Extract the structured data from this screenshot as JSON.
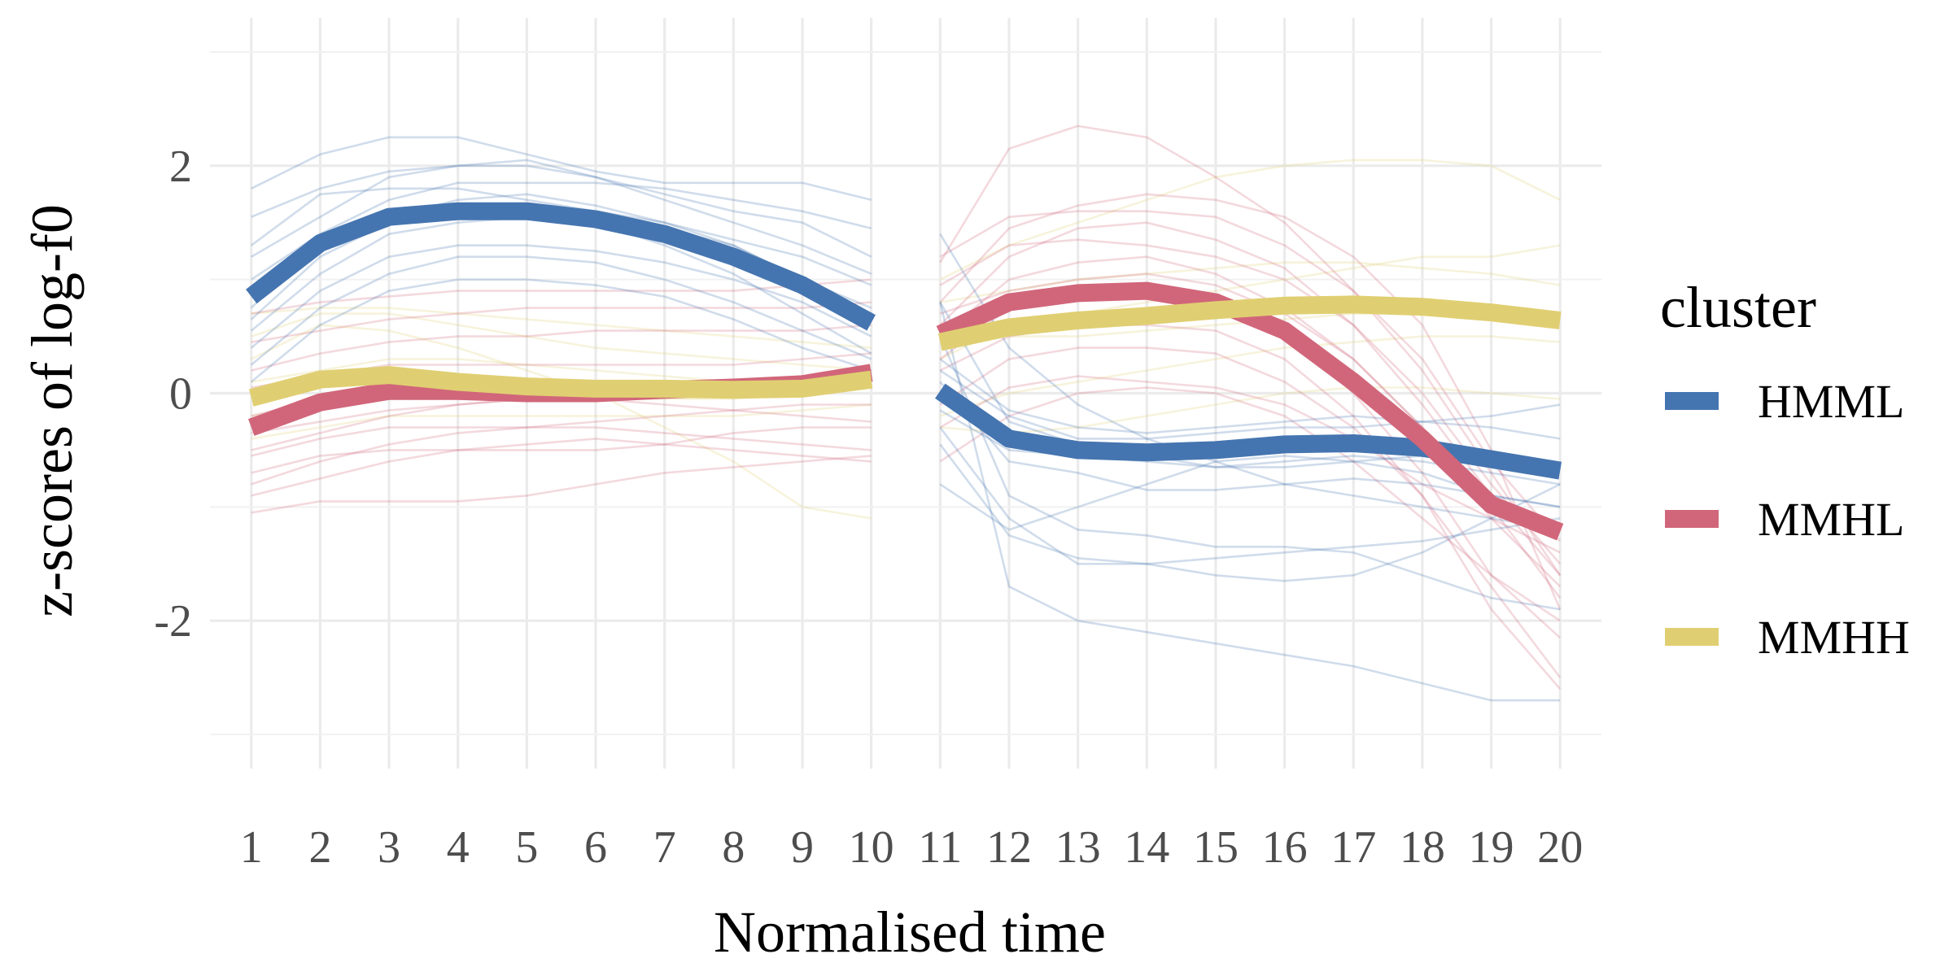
{
  "chart_data": {
    "type": "line",
    "title": "",
    "xlabel": "Normalised time",
    "ylabel": "z-scores of log-f0",
    "x": [
      1,
      2,
      3,
      4,
      5,
      6,
      7,
      8,
      9,
      10,
      11,
      12,
      13,
      14,
      15,
      16,
      17,
      18,
      19,
      20
    ],
    "xlim": [
      0.4,
      20.6
    ],
    "ylim": [
      -3.3,
      3.3
    ],
    "yticks": [
      -2,
      0,
      2
    ],
    "ytick_labels": [
      "-2",
      "0",
      "2"
    ],
    "grid": true,
    "legend": {
      "title": "cluster",
      "position": "right"
    },
    "series": [
      {
        "name": "HMML",
        "color": "#4575b0",
        "values": [
          0.85,
          1.32,
          1.55,
          1.6,
          1.6,
          1.53,
          1.4,
          1.2,
          0.95,
          0.62,
          0.02,
          -0.4,
          -0.5,
          -0.52,
          -0.5,
          -0.45,
          -0.44,
          -0.48,
          -0.58,
          -0.68
        ]
      },
      {
        "name": "MMHL",
        "color": "#d1667a",
        "values": [
          -0.3,
          -0.08,
          0.02,
          0.02,
          0.0,
          0.0,
          0.03,
          0.05,
          0.08,
          0.18,
          0.52,
          0.8,
          0.88,
          0.9,
          0.8,
          0.55,
          0.1,
          -0.4,
          -0.98,
          -1.22
        ]
      },
      {
        "name": "MMHH",
        "color": "#e0cf72",
        "values": [
          -0.04,
          0.12,
          0.16,
          0.1,
          0.06,
          0.04,
          0.04,
          0.03,
          0.04,
          0.12,
          0.45,
          0.58,
          0.64,
          0.68,
          0.73,
          0.77,
          0.78,
          0.76,
          0.71,
          0.64
        ]
      }
    ],
    "individual_contours": {
      "HMML": [
        [
          1.8,
          2.1,
          2.25,
          2.25,
          2.1,
          1.95,
          1.85,
          1.85,
          1.85,
          1.7,
          1.4,
          0.4,
          -0.1,
          -0.4,
          -0.6,
          -0.8,
          -0.9,
          -1.0,
          -1.1,
          -1.2
        ],
        [
          1.55,
          1.8,
          1.95,
          2.0,
          2.0,
          1.9,
          1.75,
          1.6,
          1.5,
          1.2,
          0.8,
          -1.7,
          -2.0,
          -2.1,
          -2.2,
          -2.3,
          -2.4,
          -2.55,
          -2.7,
          -2.7
        ],
        [
          1.2,
          1.55,
          1.9,
          2.0,
          2.05,
          1.9,
          1.7,
          1.5,
          1.3,
          1.05,
          0.5,
          -0.9,
          -1.2,
          -1.25,
          -1.35,
          -1.35,
          -1.4,
          -1.6,
          -1.8,
          -1.9
        ],
        [
          1.0,
          1.4,
          1.7,
          1.85,
          1.85,
          1.85,
          1.8,
          1.7,
          1.6,
          1.45,
          0.1,
          -0.6,
          -0.7,
          -0.85,
          -0.85,
          -0.8,
          -0.75,
          -0.8,
          -0.9,
          -1.0
        ],
        [
          0.75,
          1.35,
          1.55,
          1.7,
          1.75,
          1.65,
          1.5,
          1.35,
          1.2,
          0.95,
          -0.15,
          -0.5,
          -0.55,
          -0.6,
          -0.65,
          -0.6,
          -0.55,
          -0.6,
          -0.7,
          -0.8
        ],
        [
          0.55,
          1.05,
          1.4,
          1.5,
          1.55,
          1.55,
          1.45,
          1.3,
          1.0,
          0.75,
          0.3,
          -0.15,
          -0.3,
          -0.35,
          -0.3,
          -0.25,
          -0.2,
          -0.25,
          -0.3,
          -0.4
        ],
        [
          0.4,
          0.9,
          1.2,
          1.3,
          1.3,
          1.25,
          1.15,
          1.0,
          0.8,
          0.5,
          -0.3,
          -1.1,
          -1.5,
          -1.5,
          -1.45,
          -1.4,
          -1.35,
          -1.3,
          -1.2,
          -1.1
        ],
        [
          0.25,
          0.75,
          1.05,
          1.2,
          1.2,
          1.15,
          1.0,
          0.8,
          0.55,
          0.3,
          -0.45,
          -1.25,
          -1.45,
          -1.5,
          -1.6,
          -1.65,
          -1.6,
          -1.4,
          -1.1,
          -0.8
        ],
        [
          0.1,
          0.6,
          0.9,
          1.0,
          1.0,
          0.95,
          0.85,
          0.65,
          0.4,
          0.2,
          0.2,
          -0.2,
          -0.4,
          -0.4,
          -0.35,
          -0.3,
          -0.3,
          -0.25,
          -0.2,
          -0.1
        ],
        [
          1.3,
          1.75,
          1.8,
          1.8,
          1.7,
          1.6,
          1.5,
          1.3,
          1.0,
          0.7,
          -0.8,
          -1.2,
          -1.0,
          -0.8,
          -0.6,
          -0.55,
          -0.6,
          -0.7,
          -0.9,
          -1.0
        ],
        [
          0.65,
          1.2,
          1.5,
          1.6,
          1.6,
          1.5,
          1.3,
          1.05,
          0.7,
          0.35,
          0.8,
          -0.25,
          -0.45,
          -0.55,
          -0.65,
          -0.65,
          -0.6,
          -0.55,
          -0.6,
          -0.65
        ]
      ],
      "MMHL": [
        [
          -1.05,
          -0.95,
          -0.95,
          -0.95,
          -0.9,
          -0.8,
          -0.7,
          -0.65,
          -0.6,
          -0.55,
          1.15,
          2.15,
          2.35,
          2.25,
          1.9,
          1.5,
          0.9,
          0.2,
          -0.7,
          -1.6
        ],
        [
          -0.9,
          -0.75,
          -0.6,
          -0.5,
          -0.45,
          -0.4,
          -0.45,
          -0.5,
          -0.55,
          -0.6,
          0.8,
          1.45,
          1.65,
          1.75,
          1.7,
          1.55,
          1.2,
          0.6,
          -0.5,
          -1.9
        ],
        [
          -0.7,
          -0.55,
          -0.5,
          -0.5,
          -0.5,
          -0.5,
          -0.45,
          -0.35,
          -0.3,
          -0.3,
          0.6,
          1.2,
          1.45,
          1.5,
          1.35,
          1.1,
          0.6,
          -0.1,
          -0.9,
          -1.6
        ],
        [
          -0.55,
          -0.4,
          -0.3,
          -0.3,
          -0.3,
          -0.25,
          -0.2,
          -0.15,
          -0.1,
          -0.1,
          1.2,
          1.55,
          1.6,
          1.6,
          1.55,
          1.3,
          0.9,
          0.3,
          -0.6,
          -1.3
        ],
        [
          -0.35,
          -0.25,
          -0.15,
          -0.1,
          -0.05,
          0.0,
          0.05,
          0.05,
          0.05,
          0.1,
          0.5,
          1.0,
          1.15,
          1.2,
          1.05,
          0.75,
          0.3,
          -0.3,
          -1.1,
          -1.7
        ],
        [
          -0.2,
          -0.05,
          0.05,
          0.1,
          0.1,
          0.1,
          0.1,
          0.1,
          0.15,
          0.2,
          0.3,
          0.75,
          0.95,
          0.95,
          0.8,
          0.55,
          0.0,
          -0.7,
          -1.6,
          -2.15
        ],
        [
          0.05,
          0.15,
          0.25,
          0.25,
          0.25,
          0.25,
          0.25,
          0.25,
          0.3,
          0.35,
          0.2,
          0.5,
          0.6,
          0.6,
          0.55,
          0.3,
          -0.2,
          -0.9,
          -1.7,
          -2.5
        ],
        [
          0.2,
          0.35,
          0.45,
          0.5,
          0.5,
          0.55,
          0.55,
          0.55,
          0.55,
          0.6,
          -0.1,
          0.3,
          0.4,
          0.4,
          0.35,
          0.1,
          -0.3,
          -0.9,
          -1.9,
          -2.6
        ],
        [
          0.45,
          0.55,
          0.65,
          0.7,
          0.75,
          0.75,
          0.75,
          0.75,
          0.75,
          0.8,
          -0.3,
          0.05,
          0.15,
          0.1,
          0.05,
          -0.1,
          -0.4,
          -0.8,
          -1.1,
          -1.4
        ],
        [
          0.7,
          0.8,
          0.85,
          0.9,
          0.9,
          0.9,
          0.9,
          0.9,
          0.95,
          1.0,
          0.95,
          1.3,
          1.35,
          1.3,
          1.2,
          1.0,
          0.6,
          0.0,
          -0.8,
          -1.5
        ],
        [
          -0.8,
          -0.6,
          -0.45,
          -0.35,
          -0.3,
          -0.3,
          -0.35,
          -0.4,
          -0.45,
          -0.5,
          0.7,
          0.9,
          1.0,
          1.05,
          0.95,
          0.7,
          0.3,
          -0.3,
          -1.0,
          -1.8
        ],
        [
          -0.5,
          -0.35,
          -0.2,
          -0.1,
          -0.05,
          -0.05,
          -0.1,
          -0.15,
          -0.2,
          -0.25,
          -0.6,
          -0.2,
          0.0,
          0.05,
          0.0,
          -0.2,
          -0.6,
          -1.1,
          -1.6,
          -2.0
        ]
      ],
      "MMHH": [
        [
          0.5,
          0.7,
          0.7,
          0.6,
          0.5,
          0.4,
          0.35,
          0.3,
          0.25,
          0.2,
          1.0,
          1.3,
          1.5,
          1.7,
          1.9,
          2.0,
          2.05,
          2.05,
          2.0,
          1.7
        ],
        [
          0.3,
          0.6,
          0.55,
          0.4,
          0.2,
          0.0,
          -0.3,
          -0.6,
          -1.0,
          -1.1,
          0.3,
          0.6,
          0.7,
          0.8,
          0.9,
          1.0,
          1.1,
          1.2,
          1.2,
          1.3
        ],
        [
          0.1,
          0.2,
          0.3,
          0.3,
          0.25,
          0.2,
          0.15,
          0.1,
          0.1,
          0.15,
          0.8,
          0.9,
          1.0,
          1.05,
          1.1,
          1.15,
          1.15,
          1.1,
          1.05,
          0.95
        ],
        [
          -0.2,
          -0.1,
          -0.05,
          -0.05,
          -0.05,
          -0.05,
          -0.05,
          -0.05,
          0.0,
          0.05,
          -0.2,
          0.0,
          0.1,
          0.2,
          0.3,
          0.4,
          0.45,
          0.5,
          0.5,
          0.45
        ],
        [
          -0.4,
          -0.3,
          -0.2,
          -0.2,
          -0.2,
          -0.2,
          -0.2,
          -0.2,
          -0.15,
          -0.1,
          0.6,
          0.5,
          0.5,
          0.55,
          0.6,
          0.65,
          0.7,
          0.7,
          0.7,
          0.65
        ],
        [
          0.7,
          0.75,
          0.75,
          0.7,
          0.65,
          0.6,
          0.55,
          0.5,
          0.45,
          0.4,
          -0.3,
          -0.35,
          -0.3,
          -0.2,
          -0.1,
          0.0,
          0.05,
          0.05,
          0.0,
          -0.05
        ]
      ]
    }
  }
}
